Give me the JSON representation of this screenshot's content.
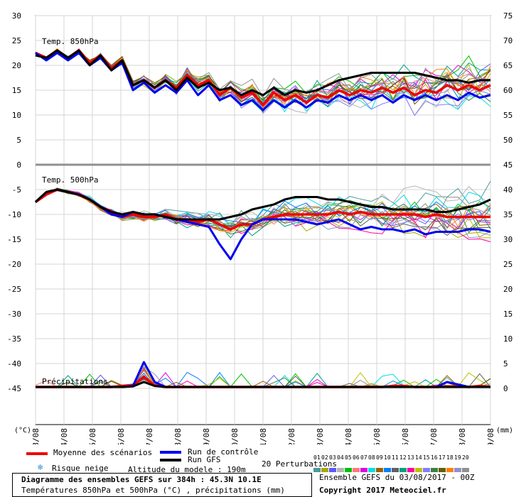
{
  "chart_data": {
    "type": "line",
    "dates": [
      "03/08",
      "04/08",
      "05/08",
      "06/08",
      "07/08",
      "08/08",
      "09/08",
      "10/08",
      "11/08",
      "12/08",
      "13/08",
      "14/08",
      "15/08",
      "16/08",
      "17/08",
      "18/08",
      "19/08"
    ],
    "left_axis": {
      "unit": "(°C)",
      "ticks": [
        30,
        25,
        20,
        15,
        10,
        5,
        0,
        -5,
        -10,
        -15,
        -20,
        -25,
        -30,
        -35,
        -40,
        -45
      ]
    },
    "right_axis": {
      "unit": "(mm)",
      "ticks": [
        75,
        70,
        65,
        60,
        55,
        50,
        45,
        40,
        35,
        30,
        25,
        20,
        15,
        10,
        5,
        0
      ]
    },
    "panels": [
      {
        "label": "Temp. 850hPa",
        "ylim": [
          0,
          30
        ],
        "series": [
          {
            "name": "Moyenne des scénarios",
            "color": "#ee0000",
            "values": [
              22.5,
              21.5,
              23,
              21.5,
              23,
              20.5,
              22,
              19.5,
              21,
              16,
              17,
              15.5,
              17,
              15.5,
              18,
              16,
              17,
              14,
              15.5,
              13.5,
              14.5,
              12,
              14.5,
              13,
              14,
              12.5,
              14,
              13.5,
              15,
              14,
              15,
              14.5,
              15.5,
              14.5,
              15.5,
              14,
              15,
              14.5,
              16,
              15,
              16,
              15,
              16
            ]
          },
          {
            "name": "Run de contrôle",
            "color": "#0000ee",
            "values": [
              22.5,
              21,
              22.5,
              21,
              22.5,
              20,
              21.5,
              19,
              20.5,
              15,
              16.5,
              14.5,
              16,
              14.5,
              17,
              14,
              16,
              13,
              14,
              12,
              13,
              11,
              13,
              11.5,
              13,
              11.5,
              13,
              12.5,
              14,
              13,
              14,
              13,
              14,
              12.5,
              14,
              13,
              14,
              13,
              14,
              13,
              14.5,
              13.5,
              14
            ]
          },
          {
            "name": "Run GFS",
            "color": "#000000",
            "values": [
              22,
              21.5,
              23,
              21.5,
              23,
              20,
              22,
              19,
              21,
              16,
              17,
              15.5,
              17,
              15,
              17.5,
              15.5,
              16.5,
              15,
              15.5,
              14,
              15,
              14,
              15.5,
              14,
              15,
              14.5,
              15,
              16,
              17,
              17.5,
              18,
              18.5,
              18.5,
              18.5,
              18.5,
              18.5,
              18,
              17.5,
              17,
              17,
              16.5,
              17,
              17
            ]
          }
        ]
      },
      {
        "label": "Temp. 500hPa",
        "ylim": [
          -45,
          0
        ],
        "series": [
          {
            "name": "Moyenne des scénarios",
            "color": "#ee0000",
            "values": [
              -7.5,
              -6,
              -5,
              -5.5,
              -6,
              -7,
              -8.5,
              -9.5,
              -10.5,
              -10,
              -10.5,
              -10.5,
              -10,
              -11,
              -11,
              -11.5,
              -11,
              -12,
              -13,
              -12,
              -12,
              -11,
              -10.5,
              -10,
              -10,
              -10,
              -10,
              -10,
              -9.5,
              -10,
              -9.5,
              -10,
              -10,
              -10,
              -10,
              -10,
              -10.5,
              -10,
              -10.5,
              -10.5,
              -10.5,
              -10.5,
              -10.5
            ]
          },
          {
            "name": "Run de contrôle",
            "color": "#0000ee",
            "values": [
              -7.5,
              -5.5,
              -5,
              -5.5,
              -6,
              -7,
              -8.5,
              -10,
              -10.5,
              -9.5,
              -10,
              -10,
              -10.5,
              -11,
              -11.5,
              -12,
              -12.5,
              -16,
              -19,
              -15,
              -12,
              -11,
              -11,
              -11,
              -11,
              -11.5,
              -12,
              -11.5,
              -11,
              -12,
              -13,
              -12.5,
              -13,
              -13,
              -13.5,
              -13,
              -14,
              -13.5,
              -13.5,
              -13.5,
              -13,
              -13,
              -13.5
            ]
          },
          {
            "name": "Run GFS",
            "color": "#000000",
            "values": [
              -7.5,
              -5.5,
              -5,
              -5.5,
              -6,
              -7,
              -8.5,
              -9.5,
              -10,
              -9.5,
              -10,
              -10,
              -10.5,
              -11,
              -11,
              -11,
              -11,
              -11,
              -10.5,
              -10,
              -9,
              -8.5,
              -8,
              -7,
              -6.5,
              -6.5,
              -6.5,
              -7,
              -7,
              -7.5,
              -8,
              -8.5,
              -8.5,
              -9,
              -9,
              -9,
              -9,
              -9.5,
              -9.5,
              -9,
              -8.5,
              -8,
              -7
            ]
          }
        ]
      },
      {
        "label": "Précipitations",
        "ylim": [
          0,
          15
        ],
        "series": [
          {
            "name": "Moyenne des scénarios",
            "color": "#ee0000",
            "values": [
              0,
              0,
              0,
              0,
              0,
              0,
              0,
              0,
              0.2,
              0.3,
              2,
              0.3,
              0,
              0,
              0,
              0,
              0,
              0,
              0,
              0,
              0,
              0,
              0,
              0,
              0,
              0,
              0,
              0,
              0,
              0,
              0,
              0,
              0,
              0.2,
              0.2,
              0,
              0,
              0,
              0.1,
              0.1,
              0,
              0.2,
              0
            ]
          },
          {
            "name": "Run de contrôle",
            "color": "#0000ee",
            "values": [
              0,
              0,
              0,
              0,
              0,
              0,
              0,
              0,
              0,
              0.2,
              5,
              1,
              0,
              0,
              0,
              0,
              0,
              0,
              0,
              0,
              0,
              0,
              0,
              0,
              0,
              0,
              0,
              0,
              0,
              0,
              0,
              0,
              0,
              0,
              0,
              0,
              0,
              0,
              1,
              0.5,
              0,
              0,
              0
            ]
          },
          {
            "name": "Run GFS",
            "color": "#000000",
            "values": [
              0,
              0,
              0,
              0,
              0,
              0,
              0,
              0,
              0,
              0.1,
              1,
              0.2,
              0,
              0,
              0,
              0,
              0,
              0,
              0,
              0,
              0,
              0,
              0,
              0,
              0,
              0,
              0,
              0,
              0,
              0,
              0,
              0,
              0,
              0,
              0,
              0,
              0,
              0,
              0,
              0,
              0,
              0,
              0
            ]
          }
        ]
      }
    ]
  },
  "legend": {
    "mean_label": "Moyenne des scénarios",
    "control_label": "Run de contrôle",
    "gfs_label": "Run GFS",
    "snow_label": "Risque neige",
    "altitude_label": "Altitude du modele : 190m",
    "perturbations_label": "20 Perturbations",
    "perturbation_numbers": [
      "01",
      "02",
      "03",
      "04",
      "05",
      "06",
      "07",
      "08",
      "09",
      "10",
      "11",
      "12",
      "13",
      "14",
      "15",
      "16",
      "17",
      "18",
      "19",
      "20"
    ],
    "perturbation_colors": [
      "#4a9a9a",
      "#a8a800",
      "#5a5aff",
      "#b4b4b4",
      "#00c000",
      "#ff7878",
      "#e000e0",
      "#00e0e0",
      "#a06000",
      "#0080ff",
      "#606060",
      "#00a080",
      "#ff00a0",
      "#c0c000",
      "#8080ff",
      "#408040",
      "#606000",
      "#ff8000",
      "#9090d0",
      "#909090"
    ]
  },
  "footer": {
    "title": "Diagramme des ensembles GEFS sur 384h : 45.3N 10.1E",
    "subtitle": "Températures 850hPa et 500hPa (°C) , précipitations (mm)",
    "run_info": "Ensemble GEFS du 03/08/2017 - 00Z",
    "copyright": "Copyright 2017 Meteociel.fr"
  },
  "colors": {
    "mean": "#ee0000",
    "control": "#0000ee",
    "gfs": "#000000",
    "snow": "#2a8fd8"
  }
}
